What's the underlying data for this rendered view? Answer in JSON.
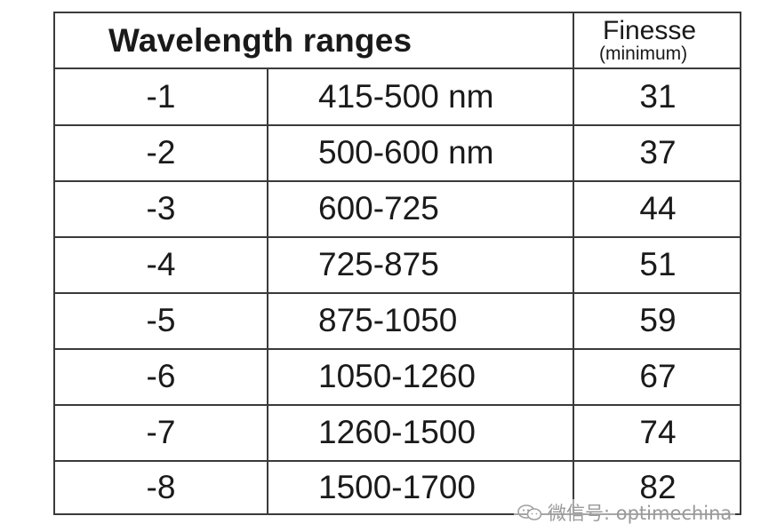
{
  "table": {
    "header": {
      "title": "Wavelength ranges",
      "finesse_label": "Finesse",
      "finesse_sub": "(minimum)"
    },
    "rows": [
      {
        "index": "-1",
        "range": "415-500 nm",
        "finesse": "31"
      },
      {
        "index": "-2",
        "range": "500-600 nm",
        "finesse": "37"
      },
      {
        "index": "-3",
        "range": "600-725",
        "finesse": "44"
      },
      {
        "index": "-4",
        "range": "725-875",
        "finesse": "51"
      },
      {
        "index": "-5",
        "range": "875-1050",
        "finesse": "59"
      },
      {
        "index": "-6",
        "range": "1050-1260",
        "finesse": "67"
      },
      {
        "index": "-7",
        "range": "1260-1500",
        "finesse": "74"
      },
      {
        "index": "-8",
        "range": "1500-1700",
        "finesse": "82"
      }
    ]
  },
  "watermark": {
    "text": "微信号: optimechina",
    "icon": "wechat-icon"
  }
}
